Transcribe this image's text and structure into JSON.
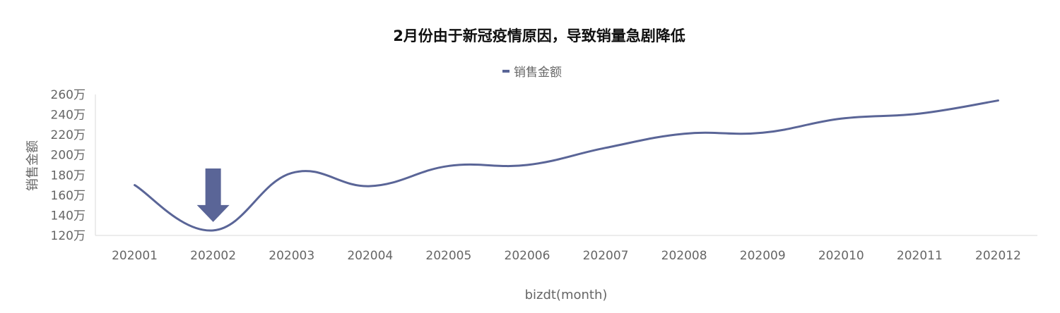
{
  "chart_data": {
    "type": "line",
    "title": "2月份由于新冠疫情原因，导致销量急剧降低",
    "xlabel": "bizdt(month)",
    "ylabel": "销售金额",
    "categories": [
      "202001",
      "202002",
      "202003",
      "202004",
      "202005",
      "202006",
      "202007",
      "202008",
      "202009",
      "202010",
      "202011",
      "202012"
    ],
    "series": [
      {
        "name": "销售金额",
        "values": [
          170,
          125,
          182,
          169,
          189,
          190,
          207,
          221,
          222,
          236,
          241,
          254
        ]
      }
    ],
    "ylim": [
      120,
      260
    ],
    "y_ticks": [
      "120万",
      "140万",
      "160万",
      "180万",
      "200万",
      "220万",
      "240万",
      "260万"
    ],
    "legend_position": "top",
    "annotation": {
      "type": "down-arrow",
      "category": "202002"
    },
    "colors": {
      "series": "#5a6597",
      "axis": "#d9d9d9",
      "text": "#666666",
      "title": "#111111"
    }
  }
}
